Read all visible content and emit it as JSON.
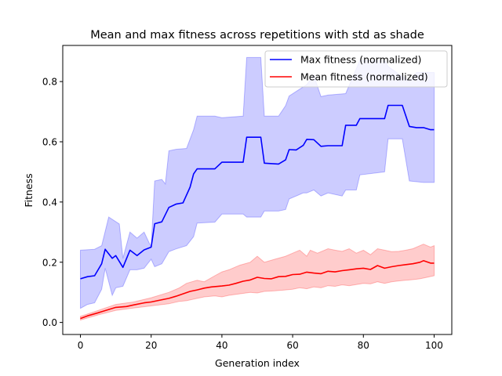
{
  "chart_data": {
    "type": "line",
    "title": "Mean and max fitness across repetitions with std as shade",
    "xlabel": "Generation index",
    "ylabel": "Fitness",
    "xlim": [
      -5,
      105
    ],
    "ylim": [
      -0.04,
      0.92
    ],
    "xticks": [
      0,
      20,
      40,
      60,
      80,
      100
    ],
    "yticks": [
      0.0,
      0.2,
      0.4,
      0.6,
      0.8
    ],
    "xtick_labels": [
      "0",
      "20",
      "40",
      "60",
      "80",
      "100"
    ],
    "ytick_labels": [
      "0.0",
      "0.2",
      "0.4",
      "0.6",
      "0.8"
    ],
    "grid": false,
    "legend_position": "top-right",
    "series": [
      {
        "name": "Max fitness (normalized)",
        "color": "#0000ff",
        "shade_color": "#ccccff",
        "points": [
          [
            0,
            0.145
          ],
          [
            2,
            0.152
          ],
          [
            4,
            0.155
          ],
          [
            6,
            0.195
          ],
          [
            7,
            0.243
          ],
          [
            9,
            0.213
          ],
          [
            10,
            0.222
          ],
          [
            12,
            0.183
          ],
          [
            14,
            0.24
          ],
          [
            16,
            0.222
          ],
          [
            18,
            0.241
          ],
          [
            20,
            0.25
          ],
          [
            21,
            0.328
          ],
          [
            23,
            0.334
          ],
          [
            25,
            0.382
          ],
          [
            27,
            0.393
          ],
          [
            29,
            0.397
          ],
          [
            31,
            0.449
          ],
          [
            32,
            0.493
          ],
          [
            33,
            0.51
          ],
          [
            38,
            0.51
          ],
          [
            40,
            0.532
          ],
          [
            46,
            0.532
          ],
          [
            47,
            0.615
          ],
          [
            51,
            0.615
          ],
          [
            52,
            0.529
          ],
          [
            56,
            0.526
          ],
          [
            58,
            0.54
          ],
          [
            59,
            0.574
          ],
          [
            61,
            0.573
          ],
          [
            63,
            0.588
          ],
          [
            64,
            0.608
          ],
          [
            66,
            0.607
          ],
          [
            68,
            0.585
          ],
          [
            70,
            0.587
          ],
          [
            74,
            0.587
          ],
          [
            75,
            0.655
          ],
          [
            78,
            0.655
          ],
          [
            79,
            0.677
          ],
          [
            86,
            0.677
          ],
          [
            87,
            0.721
          ],
          [
            91,
            0.721
          ],
          [
            93,
            0.651
          ],
          [
            95,
            0.647
          ],
          [
            97,
            0.647
          ],
          [
            99,
            0.64
          ],
          [
            100,
            0.64
          ]
        ],
        "upper": [
          [
            0,
            0.24
          ],
          [
            4,
            0.243
          ],
          [
            6,
            0.255
          ],
          [
            8,
            0.35
          ],
          [
            11,
            0.327
          ],
          [
            12,
            0.213
          ],
          [
            14,
            0.3
          ],
          [
            16,
            0.28
          ],
          [
            18,
            0.3
          ],
          [
            20,
            0.25
          ],
          [
            21,
            0.47
          ],
          [
            23,
            0.475
          ],
          [
            24,
            0.46
          ],
          [
            25,
            0.57
          ],
          [
            27,
            0.575
          ],
          [
            30,
            0.578
          ],
          [
            32,
            0.64
          ],
          [
            33,
            0.685
          ],
          [
            38,
            0.685
          ],
          [
            40,
            0.68
          ],
          [
            46,
            0.685
          ],
          [
            47,
            0.88
          ],
          [
            51,
            0.88
          ],
          [
            52,
            0.685
          ],
          [
            56,
            0.685
          ],
          [
            58,
            0.72
          ],
          [
            59,
            0.752
          ],
          [
            64,
            0.79
          ],
          [
            66,
            0.82
          ],
          [
            68,
            0.75
          ],
          [
            70,
            0.755
          ],
          [
            75,
            0.76
          ],
          [
            79,
            0.87
          ],
          [
            86,
            0.87
          ],
          [
            87,
            0.85
          ],
          [
            93,
            0.8
          ],
          [
            95,
            0.83
          ],
          [
            97,
            0.83
          ],
          [
            100,
            0.83
          ]
        ],
        "lower": [
          [
            0,
            0.047
          ],
          [
            2,
            0.06
          ],
          [
            4,
            0.065
          ],
          [
            6,
            0.11
          ],
          [
            7,
            0.18
          ],
          [
            9,
            0.09
          ],
          [
            10,
            0.115
          ],
          [
            12,
            0.12
          ],
          [
            14,
            0.175
          ],
          [
            16,
            0.175
          ],
          [
            18,
            0.18
          ],
          [
            20,
            0.21
          ],
          [
            21,
            0.185
          ],
          [
            23,
            0.195
          ],
          [
            25,
            0.235
          ],
          [
            27,
            0.244
          ],
          [
            30,
            0.255
          ],
          [
            32,
            0.285
          ],
          [
            33,
            0.33
          ],
          [
            38,
            0.333
          ],
          [
            40,
            0.36
          ],
          [
            46,
            0.36
          ],
          [
            47,
            0.35
          ],
          [
            51,
            0.35
          ],
          [
            52,
            0.37
          ],
          [
            56,
            0.37
          ],
          [
            58,
            0.375
          ],
          [
            59,
            0.41
          ],
          [
            61,
            0.42
          ],
          [
            63,
            0.43
          ],
          [
            64,
            0.43
          ],
          [
            66,
            0.44
          ],
          [
            68,
            0.42
          ],
          [
            70,
            0.43
          ],
          [
            74,
            0.42
          ],
          [
            75,
            0.44
          ],
          [
            78,
            0.44
          ],
          [
            79,
            0.49
          ],
          [
            86,
            0.5
          ],
          [
            87,
            0.61
          ],
          [
            91,
            0.61
          ],
          [
            93,
            0.47
          ],
          [
            97,
            0.465
          ],
          [
            100,
            0.465
          ]
        ]
      },
      {
        "name": "Mean fitness (normalized)",
        "color": "#ff0000",
        "shade_color": "#ffcccc",
        "points": [
          [
            0,
            0.013
          ],
          [
            2,
            0.022
          ],
          [
            5,
            0.032
          ],
          [
            8,
            0.043
          ],
          [
            10,
            0.05
          ],
          [
            13,
            0.053
          ],
          [
            15,
            0.058
          ],
          [
            18,
            0.065
          ],
          [
            20,
            0.068
          ],
          [
            22,
            0.073
          ],
          [
            25,
            0.08
          ],
          [
            27,
            0.087
          ],
          [
            29,
            0.095
          ],
          [
            31,
            0.103
          ],
          [
            33,
            0.108
          ],
          [
            35,
            0.114
          ],
          [
            37,
            0.118
          ],
          [
            40,
            0.121
          ],
          [
            42,
            0.124
          ],
          [
            44,
            0.13
          ],
          [
            46,
            0.137
          ],
          [
            48,
            0.141
          ],
          [
            50,
            0.15
          ],
          [
            52,
            0.146
          ],
          [
            54,
            0.145
          ],
          [
            56,
            0.152
          ],
          [
            58,
            0.153
          ],
          [
            60,
            0.159
          ],
          [
            62,
            0.16
          ],
          [
            64,
            0.167
          ],
          [
            66,
            0.164
          ],
          [
            68,
            0.162
          ],
          [
            70,
            0.17
          ],
          [
            72,
            0.168
          ],
          [
            74,
            0.172
          ],
          [
            76,
            0.175
          ],
          [
            78,
            0.178
          ],
          [
            80,
            0.18
          ],
          [
            82,
            0.176
          ],
          [
            84,
            0.189
          ],
          [
            86,
            0.18
          ],
          [
            88,
            0.185
          ],
          [
            90,
            0.189
          ],
          [
            92,
            0.192
          ],
          [
            94,
            0.195
          ],
          [
            96,
            0.2
          ],
          [
            97,
            0.205
          ],
          [
            99,
            0.197
          ],
          [
            100,
            0.197
          ]
        ],
        "upper": [
          [
            0,
            0.02
          ],
          [
            5,
            0.04
          ],
          [
            10,
            0.06
          ],
          [
            15,
            0.068
          ],
          [
            20,
            0.082
          ],
          [
            25,
            0.1
          ],
          [
            28,
            0.115
          ],
          [
            30,
            0.13
          ],
          [
            33,
            0.14
          ],
          [
            35,
            0.135
          ],
          [
            38,
            0.155
          ],
          [
            40,
            0.168
          ],
          [
            42,
            0.175
          ],
          [
            45,
            0.19
          ],
          [
            48,
            0.2
          ],
          [
            50,
            0.22
          ],
          [
            52,
            0.2
          ],
          [
            55,
            0.21
          ],
          [
            58,
            0.22
          ],
          [
            60,
            0.23
          ],
          [
            62,
            0.24
          ],
          [
            64,
            0.22
          ],
          [
            65,
            0.24
          ],
          [
            67,
            0.23
          ],
          [
            70,
            0.245
          ],
          [
            72,
            0.24
          ],
          [
            74,
            0.236
          ],
          [
            76,
            0.245
          ],
          [
            78,
            0.23
          ],
          [
            80,
            0.24
          ],
          [
            82,
            0.225
          ],
          [
            84,
            0.245
          ],
          [
            86,
            0.24
          ],
          [
            88,
            0.235
          ],
          [
            90,
            0.236
          ],
          [
            92,
            0.24
          ],
          [
            94,
            0.245
          ],
          [
            96,
            0.255
          ],
          [
            97,
            0.26
          ],
          [
            99,
            0.25
          ],
          [
            100,
            0.255
          ]
        ],
        "lower": [
          [
            0,
            0.008
          ],
          [
            5,
            0.025
          ],
          [
            10,
            0.04
          ],
          [
            15,
            0.048
          ],
          [
            20,
            0.055
          ],
          [
            25,
            0.062
          ],
          [
            28,
            0.07
          ],
          [
            30,
            0.072
          ],
          [
            33,
            0.08
          ],
          [
            35,
            0.085
          ],
          [
            38,
            0.088
          ],
          [
            40,
            0.085
          ],
          [
            42,
            0.09
          ],
          [
            45,
            0.095
          ],
          [
            48,
            0.1
          ],
          [
            50,
            0.098
          ],
          [
            52,
            0.103
          ],
          [
            55,
            0.105
          ],
          [
            58,
            0.108
          ],
          [
            60,
            0.11
          ],
          [
            62,
            0.115
          ],
          [
            64,
            0.112
          ],
          [
            66,
            0.118
          ],
          [
            68,
            0.115
          ],
          [
            70,
            0.122
          ],
          [
            72,
            0.12
          ],
          [
            74,
            0.125
          ],
          [
            76,
            0.122
          ],
          [
            78,
            0.126
          ],
          [
            80,
            0.13
          ],
          [
            82,
            0.128
          ],
          [
            84,
            0.135
          ],
          [
            86,
            0.13
          ],
          [
            88,
            0.135
          ],
          [
            90,
            0.138
          ],
          [
            92,
            0.14
          ],
          [
            94,
            0.142
          ],
          [
            96,
            0.145
          ],
          [
            98,
            0.15
          ],
          [
            100,
            0.155
          ]
        ]
      }
    ]
  }
}
